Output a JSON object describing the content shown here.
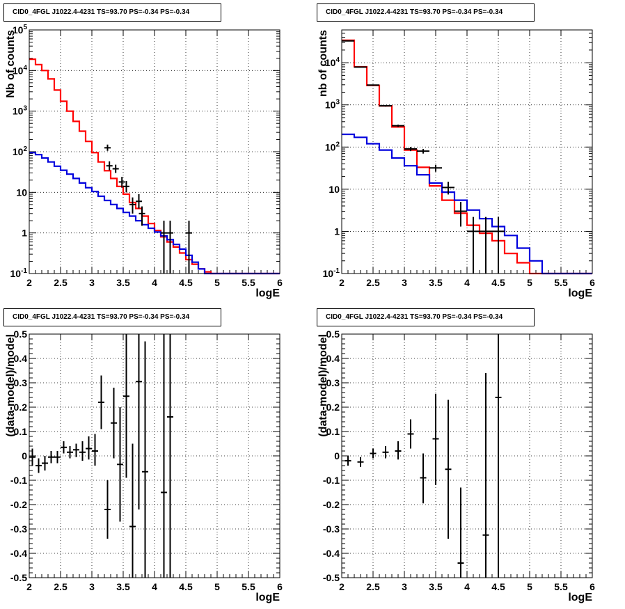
{
  "chart_data": [
    {
      "type": "line",
      "title": "CID0_4FGL J1022.4-4231 TS=93.70 PS=-0.34 PS=-0.34",
      "xlabel": "logE",
      "ylabel": "Nb of counts",
      "log_y": true,
      "xlim": [
        2,
        6
      ],
      "ylim": [
        0.1,
        100000
      ],
      "x_ticks": [
        "2",
        "2.5",
        "3",
        "3.5",
        "4",
        "4.5",
        "5",
        "5.5",
        "6"
      ],
      "y_ticks": [
        "10^-1",
        "1",
        "10",
        "10^2",
        "10^3",
        "10^4",
        "10^5"
      ],
      "grid": true,
      "series": [
        {
          "color": "#ff0000",
          "x": [
            2.05,
            2.15,
            2.25,
            2.35,
            2.45,
            2.55,
            2.65,
            2.75,
            2.85,
            2.95,
            3.05,
            3.15,
            3.25,
            3.35,
            3.45,
            3.55,
            3.65,
            3.75,
            3.85,
            3.95,
            4.05,
            4.15,
            4.25,
            4.35,
            4.45,
            4.55,
            4.65,
            4.75,
            4.85,
            4.95,
            5.05,
            5.15,
            5.25,
            5.35,
            5.45,
            5.55,
            5.65,
            5.75,
            5.85,
            5.95
          ],
          "values": [
            19000,
            14000,
            10000,
            6200,
            3300,
            1750,
            1000,
            560,
            320,
            180,
            95,
            56,
            34,
            22,
            14,
            9,
            5.6,
            4,
            2.6,
            1.7,
            1.15,
            0.8,
            0.6,
            0.45,
            0.32,
            0.22,
            0.17,
            0.13,
            0.11,
            0.1,
            0.1,
            0.1,
            0.1,
            0.1,
            0.1,
            0.1,
            0.1,
            0.1,
            0.1,
            0.1
          ]
        },
        {
          "color": "#0000dd",
          "x": [
            2.05,
            2.15,
            2.25,
            2.35,
            2.45,
            2.55,
            2.65,
            2.75,
            2.85,
            2.95,
            3.05,
            3.15,
            3.25,
            3.35,
            3.45,
            3.55,
            3.65,
            3.75,
            3.85,
            3.95,
            4.05,
            4.15,
            4.25,
            4.35,
            4.45,
            4.55,
            4.65,
            4.75,
            4.85,
            4.95,
            5.05,
            5.15,
            5.25,
            5.35,
            5.45,
            5.55,
            5.65,
            5.75,
            5.85,
            5.95
          ],
          "values": [
            95,
            85,
            70,
            56,
            44,
            35,
            28,
            22,
            17,
            13,
            10.5,
            8,
            6.3,
            5,
            4,
            3.2,
            2.6,
            2,
            1.6,
            1.3,
            1.05,
            0.85,
            0.68,
            0.52,
            0.4,
            0.28,
            0.19,
            0.13,
            0.1,
            0.1,
            0.1,
            0.1,
            0.1,
            0.1,
            0.1,
            0.1,
            0.1,
            0.1,
            0.1,
            0.1
          ]
        }
      ],
      "points": [
        {
          "x": 3.25,
          "y": 125,
          "ylo": 105,
          "yhi": 150
        },
        {
          "x": 3.28,
          "y": 45,
          "ylo": 35,
          "yhi": 58
        },
        {
          "x": 3.38,
          "y": 38,
          "ylo": 30,
          "yhi": 48
        },
        {
          "x": 3.48,
          "y": 18,
          "ylo": 13,
          "yhi": 24
        },
        {
          "x": 3.55,
          "y": 14,
          "ylo": 10,
          "yhi": 19
        },
        {
          "x": 3.65,
          "y": 5,
          "ylo": 3,
          "yhi": 7.5
        },
        {
          "x": 3.75,
          "y": 6,
          "ylo": 4,
          "yhi": 9
        },
        {
          "x": 3.8,
          "y": 3,
          "ylo": 1.5,
          "yhi": 4.5
        },
        {
          "x": 4.15,
          "y": 1,
          "ylo": 0.1,
          "yhi": 2
        },
        {
          "x": 4.25,
          "y": 1,
          "ylo": 0.1,
          "yhi": 2
        },
        {
          "x": 4.55,
          "y": 1,
          "ylo": 0.1,
          "yhi": 2
        }
      ]
    },
    {
      "type": "line",
      "title": "CID0_4FGL J1022.4-4231 TS=93.70 PS=-0.34 PS=-0.34",
      "xlabel": "logE",
      "ylabel": "nb of counts",
      "log_y": true,
      "xlim": [
        2,
        6
      ],
      "ylim": [
        0.1,
        60000
      ],
      "x_ticks": [
        "2",
        "2.5",
        "3",
        "3.5",
        "4",
        "4.5",
        "5",
        "5.5",
        "6"
      ],
      "y_ticks": [
        "10^-1",
        "1",
        "10",
        "10^2",
        "10^3",
        "10^4"
      ],
      "grid": true,
      "series": [
        {
          "color": "#ff0000",
          "x": [
            2.1,
            2.3,
            2.5,
            2.7,
            2.9,
            3.1,
            3.3,
            3.5,
            3.7,
            3.9,
            4.1,
            4.3,
            4.5,
            4.7,
            4.9,
            5.1,
            5.3,
            5.5,
            5.7,
            5.9
          ],
          "values": [
            34000,
            8000,
            2900,
            950,
            300,
            85,
            33,
            12,
            5.5,
            2.7,
            1.4,
            0.9,
            0.6,
            0.3,
            0.18,
            0.1,
            0.1,
            0.1,
            0.1,
            0.1
          ]
        },
        {
          "color": "#0000dd",
          "x": [
            2.1,
            2.3,
            2.5,
            2.7,
            2.9,
            3.1,
            3.3,
            3.5,
            3.7,
            3.9,
            4.1,
            4.3,
            4.5,
            4.7,
            4.9,
            5.1,
            5.3,
            5.5,
            5.7,
            5.9
          ],
          "values": [
            200,
            170,
            120,
            85,
            55,
            36,
            22,
            14,
            8.5,
            5.5,
            3.2,
            2,
            1.3,
            0.8,
            0.4,
            0.2,
            0.1,
            0.1,
            0.1,
            0.1
          ]
        }
      ],
      "points": [
        {
          "x": 2.1,
          "y": 33000,
          "ylo": 32000,
          "yhi": 34000
        },
        {
          "x": 2.3,
          "y": 7900,
          "ylo": 7700,
          "yhi": 8100
        },
        {
          "x": 2.5,
          "y": 2950,
          "ylo": 2850,
          "yhi": 3050
        },
        {
          "x": 2.7,
          "y": 950,
          "ylo": 910,
          "yhi": 990
        },
        {
          "x": 2.9,
          "y": 320,
          "ylo": 300,
          "yhi": 340
        },
        {
          "x": 3.1,
          "y": 90,
          "ylo": 80,
          "yhi": 100
        },
        {
          "x": 3.3,
          "y": 80,
          "ylo": 70,
          "yhi": 90
        },
        {
          "x": 3.5,
          "y": 32,
          "ylo": 26,
          "yhi": 38
        },
        {
          "x": 3.7,
          "y": 11,
          "ylo": 7.5,
          "yhi": 15
        },
        {
          "x": 3.9,
          "y": 3,
          "ylo": 1.3,
          "yhi": 5
        },
        {
          "x": 4.1,
          "y": 1,
          "ylo": 0.1,
          "yhi": 2.2
        },
        {
          "x": 4.3,
          "y": 1,
          "ylo": 0.1,
          "yhi": 2.2
        },
        {
          "x": 4.5,
          "y": 1,
          "ylo": 0.1,
          "yhi": 2.2
        }
      ]
    },
    {
      "type": "scatter",
      "title": "CID0_4FGL J1022.4-4231 TS=93.70 PS=-0.34 PS=-0.34",
      "xlabel": "logE",
      "ylabel": "(data-model)/model",
      "log_y": false,
      "xlim": [
        2,
        6
      ],
      "ylim": [
        -0.5,
        0.5
      ],
      "x_ticks": [
        "2",
        "2.5",
        "3",
        "3.5",
        "4",
        "4.5",
        "5",
        "5.5",
        "6"
      ],
      "y_ticks": [
        "-0.5",
        "-0.4",
        "-0.3",
        "-0.2",
        "-0.1",
        "0",
        "0.1",
        "0.2",
        "0.3",
        "0.4",
        "0.5"
      ],
      "grid": true,
      "points": [
        {
          "x": 2.05,
          "y": -0.005,
          "ylo": -0.04,
          "yhi": 0.03
        },
        {
          "x": 2.15,
          "y": -0.04,
          "ylo": -0.07,
          "yhi": -0.01
        },
        {
          "x": 2.25,
          "y": -0.03,
          "ylo": -0.06,
          "yhi": 0.0
        },
        {
          "x": 2.35,
          "y": -0.005,
          "ylo": -0.03,
          "yhi": 0.02
        },
        {
          "x": 2.45,
          "y": -0.005,
          "ylo": -0.03,
          "yhi": 0.02
        },
        {
          "x": 2.55,
          "y": 0.035,
          "ylo": 0.01,
          "yhi": 0.06
        },
        {
          "x": 2.65,
          "y": 0.015,
          "ylo": -0.01,
          "yhi": 0.04
        },
        {
          "x": 2.75,
          "y": 0.025,
          "ylo": -0.005,
          "yhi": 0.05
        },
        {
          "x": 2.85,
          "y": 0.015,
          "ylo": -0.02,
          "yhi": 0.06
        },
        {
          "x": 2.95,
          "y": 0.03,
          "ylo": -0.015,
          "yhi": 0.08
        },
        {
          "x": 3.05,
          "y": 0.02,
          "ylo": -0.04,
          "yhi": 0.09
        },
        {
          "x": 3.15,
          "y": 0.22,
          "ylo": 0.11,
          "yhi": 0.33
        },
        {
          "x": 3.25,
          "y": -0.22,
          "ylo": -0.34,
          "yhi": -0.1
        },
        {
          "x": 3.35,
          "y": 0.135,
          "ylo": -0.01,
          "yhi": 0.28
        },
        {
          "x": 3.45,
          "y": -0.035,
          "ylo": -0.27,
          "yhi": 0.2
        },
        {
          "x": 3.55,
          "y": 0.245,
          "ylo": -0.09,
          "yhi": 0.5
        },
        {
          "x": 3.65,
          "y": -0.29,
          "ylo": -0.5,
          "yhi": 0.05
        },
        {
          "x": 3.75,
          "y": 0.305,
          "ylo": -0.22,
          "yhi": 0.5
        },
        {
          "x": 3.85,
          "y": -0.065,
          "ylo": -0.5,
          "yhi": 0.47
        },
        {
          "x": 4.15,
          "y": -0.15,
          "ylo": -0.5,
          "yhi": 0.5
        },
        {
          "x": 4.25,
          "y": 0.16,
          "ylo": -0.5,
          "yhi": 0.5
        }
      ]
    },
    {
      "type": "scatter",
      "title": "CID0_4FGL J1022.4-4231 TS=93.70 PS=-0.34 PS=-0.34",
      "xlabel": "logE",
      "ylabel": "(data-model)/model",
      "log_y": false,
      "xlim": [
        2,
        6
      ],
      "ylim": [
        -0.5,
        0.5
      ],
      "x_ticks": [
        "2",
        "2.5",
        "3",
        "3.5",
        "4",
        "4.5",
        "5",
        "5.5",
        "6"
      ],
      "y_ticks": [
        "-0.5",
        "-0.4",
        "-0.3",
        "-0.2",
        "-0.1",
        "0",
        "0.1",
        "0.2",
        "0.3",
        "0.4",
        "0.5"
      ],
      "grid": true,
      "points": [
        {
          "x": 2.1,
          "y": -0.02,
          "ylo": -0.04,
          "yhi": 0.0
        },
        {
          "x": 2.3,
          "y": -0.025,
          "ylo": -0.045,
          "yhi": -0.005
        },
        {
          "x": 2.5,
          "y": 0.01,
          "ylo": -0.01,
          "yhi": 0.03
        },
        {
          "x": 2.7,
          "y": 0.015,
          "ylo": -0.01,
          "yhi": 0.04
        },
        {
          "x": 2.9,
          "y": 0.02,
          "ylo": -0.015,
          "yhi": 0.06
        },
        {
          "x": 3.1,
          "y": 0.09,
          "ylo": 0.03,
          "yhi": 0.15
        },
        {
          "x": 3.3,
          "y": -0.09,
          "ylo": -0.195,
          "yhi": 0.01
        },
        {
          "x": 3.5,
          "y": 0.07,
          "ylo": -0.12,
          "yhi": 0.255
        },
        {
          "x": 3.7,
          "y": -0.055,
          "ylo": -0.34,
          "yhi": 0.23
        },
        {
          "x": 3.9,
          "y": -0.44,
          "ylo": -0.5,
          "yhi": -0.13
        },
        {
          "x": 4.3,
          "y": -0.325,
          "ylo": -0.5,
          "yhi": 0.34
        },
        {
          "x": 4.5,
          "y": 0.24,
          "ylo": -0.5,
          "yhi": 0.5
        }
      ]
    }
  ]
}
